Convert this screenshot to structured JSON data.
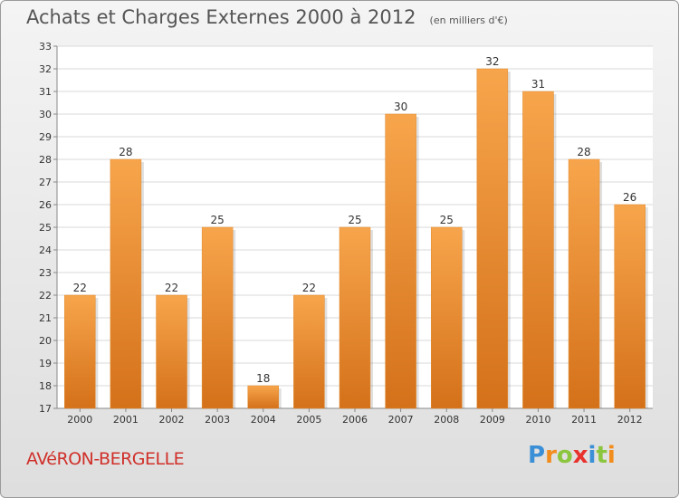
{
  "header": {
    "title": "Achats et Charges Externes 2000 à 2012",
    "subtitle": "(en milliers d'€)"
  },
  "footer": {
    "place": "AVéRON-BERGELLE",
    "brand": "Proxiti",
    "brand_letters": [
      {
        "ch": "P",
        "color": "#3a8fd6"
      },
      {
        "ch": "r",
        "color": "#f28c1c"
      },
      {
        "ch": "o",
        "color": "#8cc63f"
      },
      {
        "ch": "x",
        "color": "#e8322e"
      },
      {
        "ch": "i",
        "color": "#3a8fd6"
      },
      {
        "ch": "t",
        "color": "#8cc63f"
      },
      {
        "ch": "i",
        "color": "#f28c1c"
      }
    ]
  },
  "chart_data": {
    "type": "bar",
    "title": "Achats et Charges Externes 2000 à 2012",
    "subtitle": "(en milliers d'€)",
    "categories": [
      "2000",
      "2001",
      "2002",
      "2003",
      "2004",
      "2005",
      "2006",
      "2007",
      "2008",
      "2009",
      "2010",
      "2011",
      "2012"
    ],
    "values": [
      22,
      28,
      22,
      25,
      18,
      22,
      25,
      30,
      25,
      32,
      31,
      28,
      26
    ],
    "ylim": [
      17,
      33
    ],
    "yticks": [
      17,
      18,
      19,
      20,
      21,
      22,
      23,
      24,
      25,
      26,
      27,
      28,
      29,
      30,
      31,
      32,
      33
    ],
    "grid": true,
    "bar_color_top": "#f7a54c",
    "bar_color_bottom": "#d4711a"
  }
}
